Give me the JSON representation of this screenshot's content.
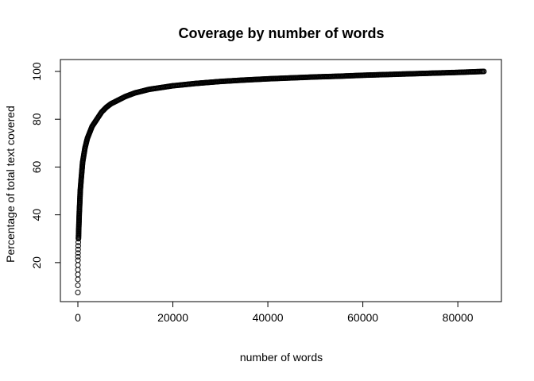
{
  "chart_data": {
    "type": "scatter",
    "title": "Coverage by number of words",
    "xlabel": "number of words",
    "ylabel": "Percentage of total text covered",
    "xlim": [
      0,
      86000
    ],
    "ylim": [
      7,
      100
    ],
    "xticks": [
      0,
      20000,
      40000,
      60000,
      80000
    ],
    "yticks": [
      20,
      40,
      60,
      80,
      100
    ],
    "xtick_labels": [
      "0",
      "20000",
      "40000",
      "60000",
      "80000"
    ],
    "ytick_labels": [
      "20",
      "40",
      "60",
      "80",
      "100"
    ],
    "grid": false,
    "series": [
      {
        "marker": "open-circle",
        "color": "#000000",
        "points": [
          [
            1,
            7.5
          ],
          [
            2,
            10.5
          ],
          [
            3,
            13
          ],
          [
            5,
            15
          ],
          [
            8,
            17
          ],
          [
            12,
            19
          ],
          [
            18,
            21
          ],
          [
            25,
            22.5
          ],
          [
            35,
            24
          ],
          [
            50,
            25.5
          ],
          [
            70,
            27
          ],
          [
            90,
            28.5
          ],
          [
            120,
            30
          ],
          [
            150,
            32
          ],
          [
            200,
            35
          ],
          [
            250,
            38
          ],
          [
            300,
            41
          ],
          [
            400,
            45
          ],
          [
            500,
            50
          ],
          [
            700,
            55
          ],
          [
            1000,
            62
          ],
          [
            1500,
            68
          ],
          [
            2000,
            72
          ],
          [
            3000,
            77
          ],
          [
            4000,
            80
          ],
          [
            5000,
            83
          ],
          [
            6000,
            85
          ],
          [
            7000,
            86.5
          ],
          [
            8000,
            87.5
          ],
          [
            10000,
            89.5
          ],
          [
            12000,
            91
          ],
          [
            15000,
            92.5
          ],
          [
            20000,
            94
          ],
          [
            25000,
            95
          ],
          [
            30000,
            95.8
          ],
          [
            35000,
            96.4
          ],
          [
            40000,
            96.9
          ],
          [
            45000,
            97.3
          ],
          [
            50000,
            97.7
          ],
          [
            55000,
            98
          ],
          [
            60000,
            98.4
          ],
          [
            65000,
            98.7
          ],
          [
            70000,
            99
          ],
          [
            75000,
            99.3
          ],
          [
            80000,
            99.6
          ],
          [
            85500,
            100
          ]
        ]
      }
    ]
  }
}
